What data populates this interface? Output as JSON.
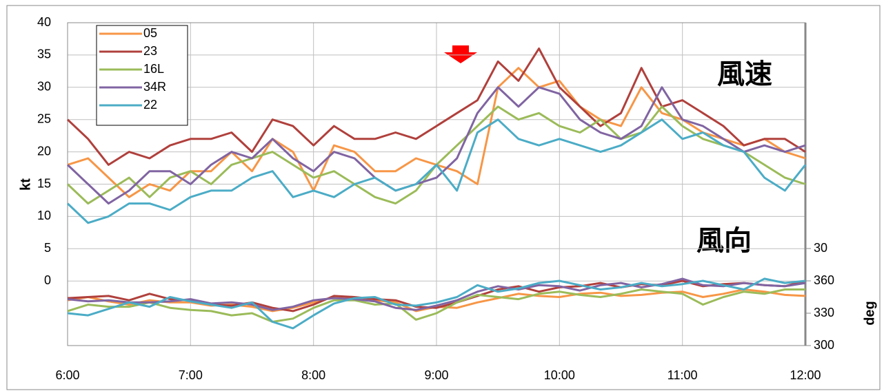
{
  "chart_data": {
    "type": "line",
    "annotations": [
      "風速",
      "風向"
    ],
    "ylabel": "kt",
    "y2label": "deg",
    "xlim": [
      "6:00",
      "12:00"
    ],
    "xticks": [
      "6:00",
      "7:00",
      "8:00",
      "9:00",
      "10:00",
      "11:00",
      "12:00"
    ],
    "ylim": [
      -10,
      40
    ],
    "yticks": [
      0,
      5,
      10,
      15,
      20,
      25,
      30,
      35,
      40
    ],
    "y2lim": [
      300,
      599.4
    ],
    "y2ticks": [
      300,
      330,
      360,
      {
        "value": 390,
        "label": "30"
      }
    ],
    "grid": true,
    "legend": "upper left",
    "x": [
      "6:00",
      "6:10",
      "6:20",
      "6:30",
      "6:40",
      "6:50",
      "7:00",
      "7:10",
      "7:20",
      "7:30",
      "7:40",
      "7:50",
      "8:00",
      "8:10",
      "8:20",
      "8:30",
      "8:40",
      "8:50",
      "9:00",
      "9:10",
      "9:20",
      "9:30",
      "9:40",
      "9:50",
      "10:00",
      "10:10",
      "10:20",
      "10:30",
      "10:40",
      "10:50",
      "11:00",
      "11:10",
      "11:20",
      "11:30",
      "11:40",
      "11:50",
      "12:00"
    ],
    "series": [
      {
        "name": "05",
        "color": "#f79646",
        "values": [
          18,
          19,
          16,
          13,
          15,
          14,
          17,
          17,
          20,
          17,
          22,
          20,
          14,
          21,
          20,
          17,
          17,
          19,
          18,
          17,
          15,
          30,
          33,
          30,
          31,
          27,
          25,
          24,
          30,
          26,
          25,
          23,
          22,
          21,
          22,
          20,
          19
        ]
      },
      {
        "name": "23",
        "color": "#b0403c",
        "values": [
          25,
          22,
          18,
          20,
          19,
          21,
          22,
          22,
          23,
          20,
          25,
          24,
          21,
          24,
          22,
          22,
          23,
          22,
          24,
          26,
          28,
          34,
          31,
          36,
          30,
          27,
          24,
          26,
          33,
          27,
          28,
          26,
          24,
          21,
          22,
          22,
          20
        ]
      },
      {
        "name": "16L",
        "color": "#9bbb59",
        "values": [
          15,
          12,
          14,
          16,
          13,
          16,
          17,
          15,
          18,
          19,
          20,
          18,
          16,
          17,
          15,
          13,
          12,
          14,
          18,
          21,
          24,
          27,
          25,
          26,
          24,
          23,
          25,
          22,
          23,
          27,
          24,
          22,
          21,
          20,
          18,
          16,
          15
        ]
      },
      {
        "name": "34R",
        "color": "#8064a2",
        "values": [
          18,
          15,
          12,
          14,
          17,
          17,
          15,
          18,
          20,
          19,
          22,
          19,
          17,
          20,
          19,
          16,
          14,
          15,
          16,
          19,
          26,
          30,
          27,
          30,
          29,
          25,
          23,
          22,
          24,
          30,
          25,
          24,
          22,
          20,
          21,
          20,
          21
        ]
      },
      {
        "name": "22",
        "color": "#4bacc6",
        "values": [
          12,
          9,
          10,
          12,
          12,
          11,
          13,
          14,
          14,
          16,
          17,
          13,
          14,
          13,
          15,
          16,
          14,
          15,
          18,
          14,
          23,
          25,
          22,
          21,
          22,
          21,
          20,
          21,
          23,
          25,
          22,
          23,
          21,
          20,
          16,
          14,
          18
        ]
      }
    ],
    "y2_series": [
      {
        "color": "#f79646",
        "axis": "y2",
        "values": [
          342,
          345,
          341,
          338,
          342,
          340,
          340,
          337,
          338,
          336,
          332,
          335,
          340,
          345,
          344,
          342,
          340,
          332,
          336,
          335,
          340,
          344,
          348,
          346,
          345,
          348,
          349,
          346,
          347,
          349,
          350,
          345,
          348,
          352,
          350,
          347,
          346
        ]
      },
      {
        "color": "#b0403c",
        "axis": "y2",
        "values": [
          344,
          345,
          346,
          342,
          348,
          343,
          342,
          338,
          337,
          340,
          335,
          332,
          338,
          346,
          345,
          343,
          342,
          336,
          335,
          340,
          346,
          352,
          355,
          350,
          354,
          355,
          358,
          354,
          357,
          356,
          360,
          355,
          357,
          358,
          356,
          355,
          360
        ]
      },
      {
        "color": "#9bbb59",
        "axis": "y2",
        "values": [
          332,
          338,
          336,
          336,
          340,
          335,
          333,
          332,
          328,
          330,
          322,
          325,
          335,
          342,
          342,
          338,
          339,
          324,
          330,
          340,
          347,
          345,
          343,
          348,
          350,
          347,
          345,
          348,
          352,
          350,
          348,
          338,
          345,
          350,
          348,
          352,
          352
        ]
      },
      {
        "color": "#8064a2",
        "axis": "y2",
        "values": [
          343,
          341,
          342,
          340,
          340,
          341,
          343,
          339,
          340,
          338,
          333,
          336,
          342,
          344,
          343,
          341,
          335,
          333,
          337,
          342,
          350,
          355,
          352,
          356,
          355,
          351,
          356,
          358,
          354,
          357,
          362,
          356,
          355,
          358,
          356,
          355,
          358
        ]
      },
      {
        "color": "#4bacc6",
        "axis": "y2",
        "values": [
          330,
          328,
          334,
          340,
          336,
          345,
          341,
          338,
          335,
          340,
          322,
          316,
          328,
          339,
          344,
          345,
          338,
          337,
          340,
          345,
          356,
          350,
          353,
          358,
          360,
          356,
          352,
          354,
          358,
          355,
          357,
          360,
          356,
          352,
          362,
          358,
          360
        ]
      }
    ]
  }
}
